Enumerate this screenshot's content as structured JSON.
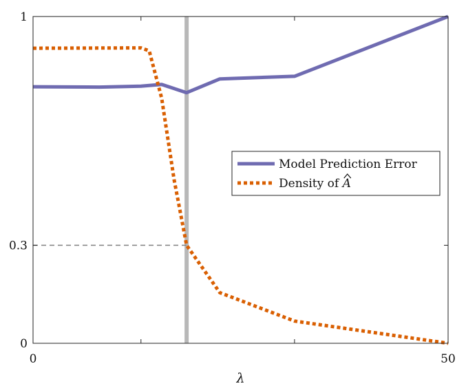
{
  "chart_data": {
    "type": "line",
    "title": "",
    "xlabel": "λ",
    "ylabel": "",
    "xlim": [
      0,
      50
    ],
    "ylim": [
      0,
      1
    ],
    "x_ticks": [
      0,
      50
    ],
    "x_tick_labels": [
      "0",
      "50"
    ],
    "y_ticks": [
      0,
      0.3,
      1
    ],
    "y_tick_labels": [
      "0",
      "0.3",
      "1"
    ],
    "grid": false,
    "legend_position": "center-right",
    "series": [
      {
        "name": "Model Prediction Error",
        "style": "solid",
        "color": "#6f6bb1",
        "x": [
          0,
          8,
          13,
          15.5,
          18.5,
          22.5,
          31.5,
          50
        ],
        "y": [
          0.785,
          0.784,
          0.787,
          0.792,
          0.767,
          0.809,
          0.817,
          1.0
        ]
      },
      {
        "name": "Density of Â",
        "legend_prefix": "Density of ",
        "legend_symbol": "A",
        "style": "dotted",
        "color": "#d95f02",
        "x": [
          0,
          13,
          14,
          15.5,
          17,
          18.5,
          22.5,
          31.5,
          50
        ],
        "y": [
          0.903,
          0.904,
          0.895,
          0.75,
          0.5,
          0.3,
          0.155,
          0.068,
          0.0
        ]
      }
    ],
    "reference_lines": [
      {
        "orientation": "vertical",
        "x": 18.5,
        "color": "#b8b8b8",
        "style": "solid"
      },
      {
        "orientation": "horizontal",
        "y": 0.3,
        "x_range": [
          0,
          18.5
        ],
        "color": "#808080",
        "style": "dashed"
      }
    ],
    "minor_x_ticks": [
      13,
      31.5
    ]
  }
}
